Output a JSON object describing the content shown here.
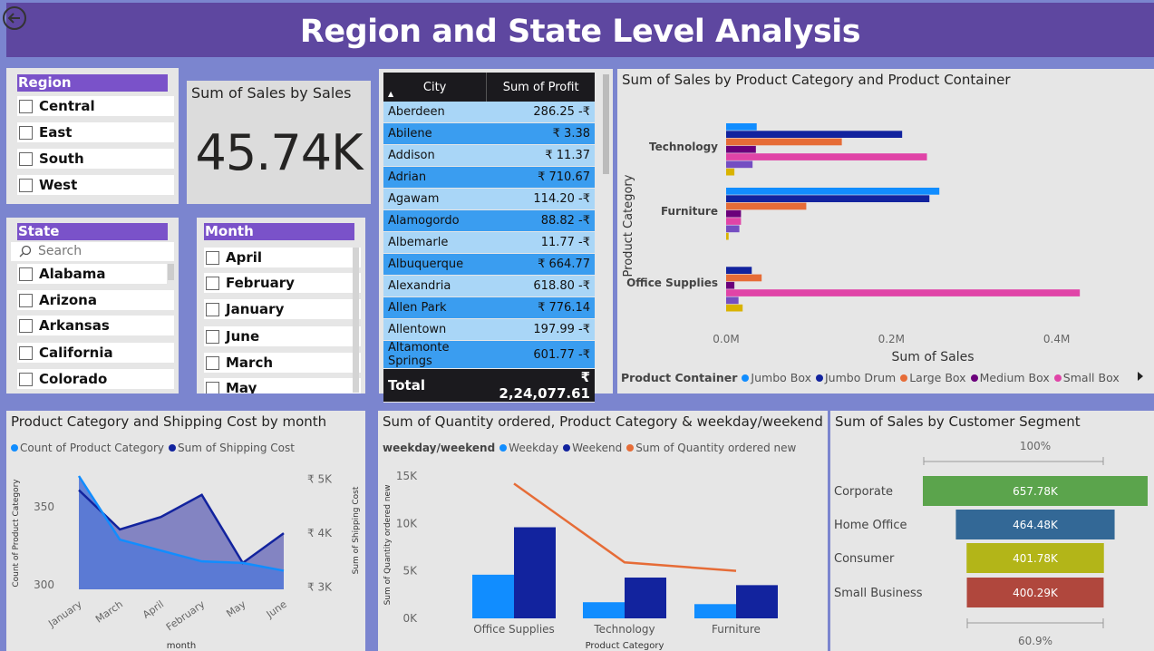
{
  "header": {
    "title": "Region and State Level Analysis"
  },
  "region": {
    "title": "Region",
    "items": [
      "Central",
      "East",
      "South",
      "West"
    ]
  },
  "kpi": {
    "title": "Sum of Sales by Sales",
    "value": "45.74K"
  },
  "state": {
    "title": "State",
    "search_placeholder": "Search",
    "items": [
      "Alabama",
      "Arizona",
      "Arkansas",
      "California",
      "Colorado"
    ]
  },
  "month": {
    "title": "Month",
    "items": [
      "April",
      "February",
      "January",
      "June",
      "March",
      "May"
    ]
  },
  "table": {
    "col_city": "City",
    "col_profit": "Sum of Profit",
    "rows": [
      {
        "city": "Aberdeen",
        "profit": "286.25 -₹"
      },
      {
        "city": "Abilene",
        "profit": "₹ 3.38"
      },
      {
        "city": "Addison",
        "profit": "₹ 11.37"
      },
      {
        "city": "Adrian",
        "profit": "₹ 710.67"
      },
      {
        "city": "Agawam",
        "profit": "114.20 -₹"
      },
      {
        "city": "Alamogordo",
        "profit": "88.82 -₹"
      },
      {
        "city": "Albemarle",
        "profit": "11.77 -₹"
      },
      {
        "city": "Albuquerque",
        "profit": "₹ 664.77"
      },
      {
        "city": "Alexandria",
        "profit": "618.80 -₹"
      },
      {
        "city": "Allen Park",
        "profit": "₹ 776.14"
      },
      {
        "city": "Allentown",
        "profit": "197.99 -₹"
      },
      {
        "city": "Altamonte Springs",
        "profit": "601.77 -₹"
      }
    ],
    "total_label": "Total",
    "total_value": "₹ 2,24,077.61"
  },
  "chart_data": [
    {
      "type": "bar",
      "orientation": "horizontal",
      "title": "Sum of Sales by Product Category and Product Container",
      "xlabel": "Sum of Sales",
      "ylabel": "Product Category",
      "categories": [
        "Technology",
        "Furniture",
        "Office Supplies"
      ],
      "x_ticks": [
        "0.0M",
        "0.2M",
        "0.4M"
      ],
      "xlim": [
        0,
        0.43
      ],
      "legend_title": "Product Container",
      "series": [
        {
          "name": "Jumbo Box",
          "color": "#118dff",
          "values": [
            0.037,
            0.258,
            0
          ]
        },
        {
          "name": "Jumbo Drum",
          "color": "#12239e",
          "values": [
            0.213,
            0.246,
            0.031
          ]
        },
        {
          "name": "Large Box",
          "color": "#e66c37",
          "values": [
            0.14,
            0.097,
            0.043
          ]
        },
        {
          "name": "Medium Box",
          "color": "#6b007b",
          "values": [
            0.036,
            0.018,
            0.01
          ]
        },
        {
          "name": "Small Box",
          "color": "#e044a7",
          "values": [
            0.243,
            0.018,
            0.428
          ]
        },
        {
          "name": "",
          "color": "#744ec2",
          "values": [
            0.032,
            0.016,
            0.015
          ]
        },
        {
          "name": "",
          "color": "#d9b300",
          "values": [
            0.01,
            0.003,
            0.02
          ]
        }
      ]
    },
    {
      "type": "area",
      "title": "Product Category and Shipping Cost by month",
      "xlabel": "month",
      "ylabel": "Count of Product Category",
      "y2label": "Sum of Shipping Cost",
      "categories": [
        "January",
        "March",
        "April",
        "February",
        "May",
        "June"
      ],
      "y_ticks": [
        "300",
        "350"
      ],
      "ylim": [
        297,
        370
      ],
      "y2_ticks": [
        "₹ 3K",
        "₹ 4K",
        "₹ 5K"
      ],
      "y2lim": [
        2960,
        5060
      ],
      "series": [
        {
          "name": "Count of Product Category",
          "color": "#118dff",
          "values": [
            370,
            329,
            322,
            315,
            314,
            309
          ]
        },
        {
          "name": "Sum of Shipping Cost",
          "color": "#12239e",
          "values": [
            4800,
            4070,
            4300,
            4710,
            3450,
            4000
          ]
        }
      ]
    },
    {
      "type": "bar",
      "combo_line": true,
      "title": "Sum of Quantity ordered, Product Category & weekday/weekend",
      "xlabel": "Product Category",
      "ylabel": "Sum of Quantity ordered new",
      "legend_title": "weekday/weekend",
      "categories": [
        "Office Supplies",
        "Technology",
        "Furniture"
      ],
      "y_ticks": [
        "0K",
        "5K",
        "10K",
        "15K"
      ],
      "ylim": [
        0,
        15000
      ],
      "series": [
        {
          "name": "Weekday",
          "color": "#118dff",
          "values": [
            4600,
            1700,
            1500
          ]
        },
        {
          "name": "Weekend",
          "color": "#12239e",
          "values": [
            9600,
            4300,
            3500
          ]
        },
        {
          "name": "Sum of Quantity ordered new",
          "color": "#e66c37",
          "values": [
            14200,
            5900,
            5000
          ]
        }
      ]
    },
    {
      "type": "bar",
      "funnel": true,
      "title": "Sum of Sales by Customer Segment",
      "top_label": "100%",
      "bottom_label": "60.9%",
      "categories": [
        "Corporate",
        "Home Office",
        "Consumer",
        "Small Business"
      ],
      "values": [
        657.78,
        464.48,
        401.78,
        400.29
      ],
      "value_labels": [
        "657.78K",
        "464.48K",
        "401.78K",
        "400.29K"
      ],
      "colors": [
        "#5ba44c",
        "#336896",
        "#b3b518",
        "#b0473d"
      ]
    }
  ]
}
